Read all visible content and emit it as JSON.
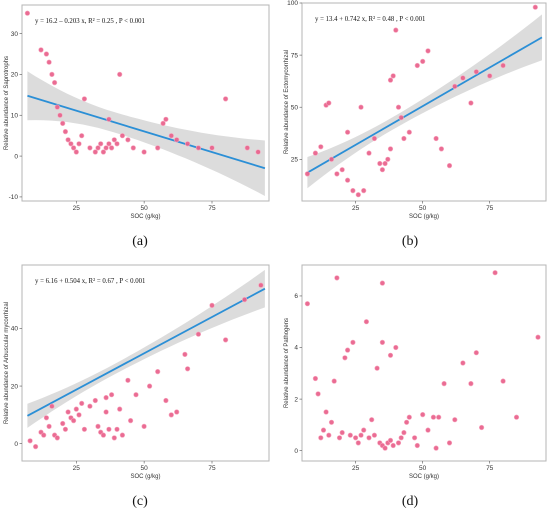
{
  "chart_data": [
    {
      "type": "scatter",
      "panel_label": "(a)",
      "xlabel": "SOC (g/kg)",
      "ylabel": "Relative abundance of Saprotrophs",
      "annotation": "y = 16.2 – 0.203 x,   R² = 0.25 ,  P < 0.001",
      "xlim": [
        5,
        96
      ],
      "ylim": [
        -11,
        37
      ],
      "xticks": [
        25,
        50,
        75
      ],
      "yticks": [
        -10,
        0,
        10,
        20,
        30
      ],
      "fit": {
        "intercept": 16.2,
        "slope": -0.203
      },
      "band": {
        "at_xmin": 6.0,
        "at_xmean": 2.5,
        "at_xmax": 6.8,
        "xmean": 38
      },
      "points": [
        [
          7,
          35
        ],
        [
          12,
          26
        ],
        [
          14,
          25
        ],
        [
          15,
          23
        ],
        [
          16,
          20
        ],
        [
          17,
          18
        ],
        [
          18,
          12
        ],
        [
          19,
          10
        ],
        [
          20,
          8
        ],
        [
          21,
          6
        ],
        [
          22,
          4
        ],
        [
          23,
          3
        ],
        [
          24,
          2
        ],
        [
          25,
          1
        ],
        [
          26,
          3
        ],
        [
          27,
          5
        ],
        [
          28,
          14
        ],
        [
          30,
          2
        ],
        [
          32,
          1
        ],
        [
          33,
          2
        ],
        [
          34,
          3
        ],
        [
          35,
          1
        ],
        [
          36,
          2
        ],
        [
          37,
          3
        ],
        [
          37,
          9
        ],
        [
          38,
          2
        ],
        [
          39,
          4
        ],
        [
          40,
          3
        ],
        [
          41,
          20
        ],
        [
          42,
          5
        ],
        [
          44,
          4
        ],
        [
          46,
          2
        ],
        [
          50,
          1
        ],
        [
          55,
          2
        ],
        [
          57,
          8
        ],
        [
          58,
          9
        ],
        [
          60,
          5
        ],
        [
          62,
          4
        ],
        [
          66,
          3
        ],
        [
          70,
          2
        ],
        [
          75,
          2
        ],
        [
          80,
          14
        ],
        [
          88,
          2
        ],
        [
          92,
          1
        ]
      ]
    },
    {
      "type": "scatter",
      "panel_label": "(b)",
      "xlabel": "SOC (g/kg)",
      "ylabel": "Relative abundance of Ectomycorrhizal",
      "annotation": "y = 13.4 + 0.742 x,   R² = 0.48 ,  P < 0.001",
      "xlim": [
        5,
        96
      ],
      "ylim": [
        5,
        100
      ],
      "xticks": [
        25,
        50,
        75
      ],
      "yticks": [
        25,
        50,
        75,
        100
      ],
      "fit": {
        "intercept": 13.4,
        "slope": 0.742
      },
      "band": {
        "at_xmin": 7.5,
        "at_xmean": 3.0,
        "at_xmax": 11.0,
        "xmean": 38
      },
      "points": [
        [
          7,
          18
        ],
        [
          10,
          28
        ],
        [
          12,
          31
        ],
        [
          14,
          51
        ],
        [
          15,
          52
        ],
        [
          16,
          25
        ],
        [
          18,
          18
        ],
        [
          20,
          20
        ],
        [
          22,
          38
        ],
        [
          22,
          15
        ],
        [
          24,
          10
        ],
        [
          26,
          8
        ],
        [
          27,
          50
        ],
        [
          28,
          10
        ],
        [
          30,
          28
        ],
        [
          32,
          35
        ],
        [
          34,
          23
        ],
        [
          35,
          20
        ],
        [
          36,
          23
        ],
        [
          37,
          25
        ],
        [
          38,
          30
        ],
        [
          38,
          63
        ],
        [
          39,
          65
        ],
        [
          40,
          87
        ],
        [
          41,
          50
        ],
        [
          42,
          45
        ],
        [
          43,
          35
        ],
        [
          45,
          38
        ],
        [
          48,
          70
        ],
        [
          50,
          72
        ],
        [
          52,
          77
        ],
        [
          55,
          35
        ],
        [
          57,
          30
        ],
        [
          60,
          22
        ],
        [
          62,
          60
        ],
        [
          65,
          64
        ],
        [
          68,
          52
        ],
        [
          70,
          67
        ],
        [
          75,
          65
        ],
        [
          80,
          70
        ],
        [
          92,
          98
        ]
      ]
    },
    {
      "type": "scatter",
      "panel_label": "(c)",
      "xlabel": "SOC (g/kg)",
      "ylabel": "Relative abundance of Arbuscular mycorrhizal",
      "annotation": "y = 6.16 + 0.504 x,   R² = 0.67 ,  P < 0.001",
      "xlim": [
        5,
        96
      ],
      "ylim": [
        -6,
        62
      ],
      "xticks": [
        25,
        50,
        75
      ],
      "yticks": [
        0,
        20,
        40
      ],
      "fit": {
        "intercept": 6.16,
        "slope": 0.504
      },
      "band": {
        "at_xmin": 4.2,
        "at_xmean": 1.8,
        "at_xmax": 6.5,
        "xmean": 38
      },
      "points": [
        [
          8,
          1
        ],
        [
          10,
          -1
        ],
        [
          12,
          4
        ],
        [
          13,
          3
        ],
        [
          14,
          9
        ],
        [
          15,
          6
        ],
        [
          16,
          13
        ],
        [
          17,
          3
        ],
        [
          18,
          2
        ],
        [
          20,
          7
        ],
        [
          21,
          5
        ],
        [
          22,
          11
        ],
        [
          23,
          9
        ],
        [
          24,
          8
        ],
        [
          25,
          12
        ],
        [
          26,
          10
        ],
        [
          27,
          14
        ],
        [
          28,
          5
        ],
        [
          30,
          13
        ],
        [
          32,
          15
        ],
        [
          33,
          6
        ],
        [
          34,
          4
        ],
        [
          35,
          3
        ],
        [
          36,
          11
        ],
        [
          36,
          16
        ],
        [
          37,
          5
        ],
        [
          38,
          17
        ],
        [
          39,
          2
        ],
        [
          40,
          5
        ],
        [
          41,
          12
        ],
        [
          42,
          3
        ],
        [
          44,
          22
        ],
        [
          45,
          8
        ],
        [
          47,
          17
        ],
        [
          50,
          6
        ],
        [
          52,
          20
        ],
        [
          55,
          25
        ],
        [
          58,
          15
        ],
        [
          60,
          10
        ],
        [
          62,
          11
        ],
        [
          65,
          31
        ],
        [
          66,
          26
        ],
        [
          70,
          38
        ],
        [
          75,
          48
        ],
        [
          80,
          36
        ],
        [
          87,
          50
        ],
        [
          93,
          55
        ]
      ]
    },
    {
      "type": "scatter",
      "panel_label": "(d)",
      "xlabel": "SOC (g/kg)",
      "ylabel": "Relative abundance of Pathogens",
      "annotation": "",
      "xlim": [
        5,
        96
      ],
      "ylim": [
        -0.4,
        7.2
      ],
      "xticks": [
        25,
        50,
        75
      ],
      "yticks": [
        0,
        2,
        4,
        6
      ],
      "points": [
        [
          7,
          5.7
        ],
        [
          10,
          2.8
        ],
        [
          11,
          2.2
        ],
        [
          12,
          0.5
        ],
        [
          13,
          0.8
        ],
        [
          14,
          1.5
        ],
        [
          15,
          0.6
        ],
        [
          16,
          1.1
        ],
        [
          17,
          2.7
        ],
        [
          18,
          6.7
        ],
        [
          19,
          0.5
        ],
        [
          20,
          0.7
        ],
        [
          21,
          3.6
        ],
        [
          22,
          3.9
        ],
        [
          23,
          0.6
        ],
        [
          24,
          4.2
        ],
        [
          25,
          0.5
        ],
        [
          26,
          0.3
        ],
        [
          27,
          0.6
        ],
        [
          28,
          0.8
        ],
        [
          29,
          5.0
        ],
        [
          30,
          0.5
        ],
        [
          31,
          1.2
        ],
        [
          32,
          0.6
        ],
        [
          33,
          3.2
        ],
        [
          34,
          0.3
        ],
        [
          35,
          0.2
        ],
        [
          35,
          4.2
        ],
        [
          35,
          6.5
        ],
        [
          36,
          0.1
        ],
        [
          37,
          0.3
        ],
        [
          38,
          0.4
        ],
        [
          38,
          3.7
        ],
        [
          39,
          0.2
        ],
        [
          40,
          4.0
        ],
        [
          41,
          0.3
        ],
        [
          42,
          0.5
        ],
        [
          43,
          0.7
        ],
        [
          44,
          1.1
        ],
        [
          45,
          1.3
        ],
        [
          47,
          0.5
        ],
        [
          48,
          0.2
        ],
        [
          50,
          1.4
        ],
        [
          52,
          0.8
        ],
        [
          54,
          1.3
        ],
        [
          55,
          0.1
        ],
        [
          56,
          1.3
        ],
        [
          58,
          2.6
        ],
        [
          60,
          0.3
        ],
        [
          62,
          1.2
        ],
        [
          65,
          3.4
        ],
        [
          68,
          2.6
        ],
        [
          70,
          3.8
        ],
        [
          72,
          0.9
        ],
        [
          77,
          6.9
        ],
        [
          80,
          2.7
        ],
        [
          85,
          1.3
        ],
        [
          93,
          4.4
        ]
      ]
    }
  ]
}
